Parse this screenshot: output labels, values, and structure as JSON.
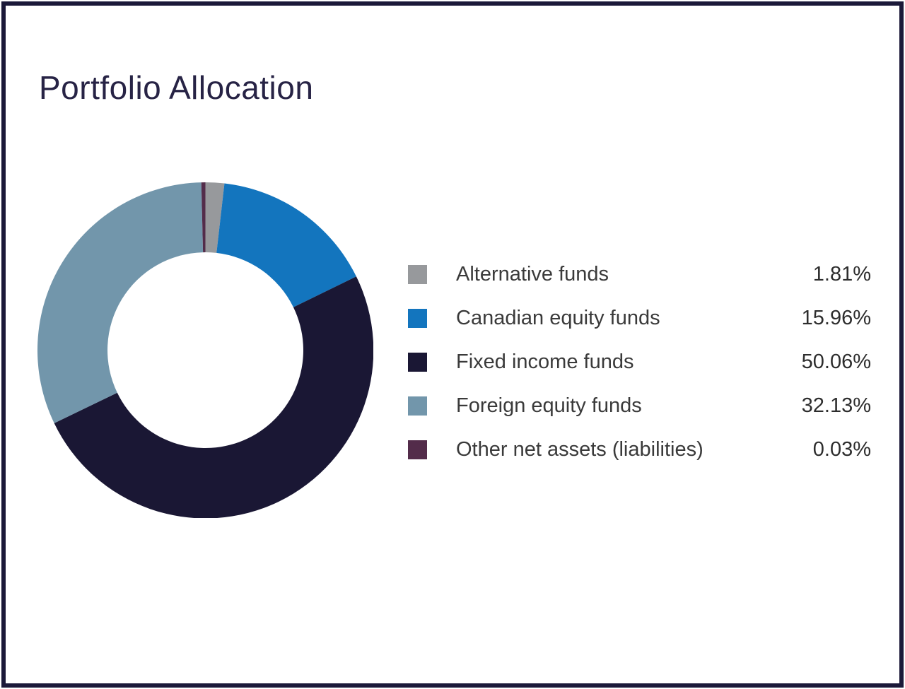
{
  "page": {
    "title": "Portfolio Allocation"
  },
  "colors": {
    "frame_border": "#1b1939",
    "title_text": "#272345",
    "legend_label_text": "#3a3a3a",
    "legend_value_text": "#2d2d2d",
    "background": "#ffffff"
  },
  "chart_data": {
    "type": "pie",
    "subtype": "donut",
    "title": "Portfolio Allocation",
    "legend_position": "right",
    "unit": "%",
    "start_angle_deg": 0,
    "direction": "clockwise",
    "inner_radius_ratio": 0.583,
    "min_slice_render_deg": 1.4,
    "series": [
      {
        "label": "Alternative funds",
        "value": 1.81,
        "display": "1.81%",
        "color": "#97999c"
      },
      {
        "label": "Canadian equity funds",
        "value": 15.96,
        "display": "15.96%",
        "color": "#1375be"
      },
      {
        "label": "Fixed income funds",
        "value": 50.06,
        "display": "50.06%",
        "color": "#1a1734"
      },
      {
        "label": "Foreign equity funds",
        "value": 32.13,
        "display": "32.13%",
        "color": "#7296ab"
      },
      {
        "label": "Other net assets (liabilities)",
        "value": 0.03,
        "display": "0.03%",
        "color": "#532c4a"
      }
    ]
  }
}
